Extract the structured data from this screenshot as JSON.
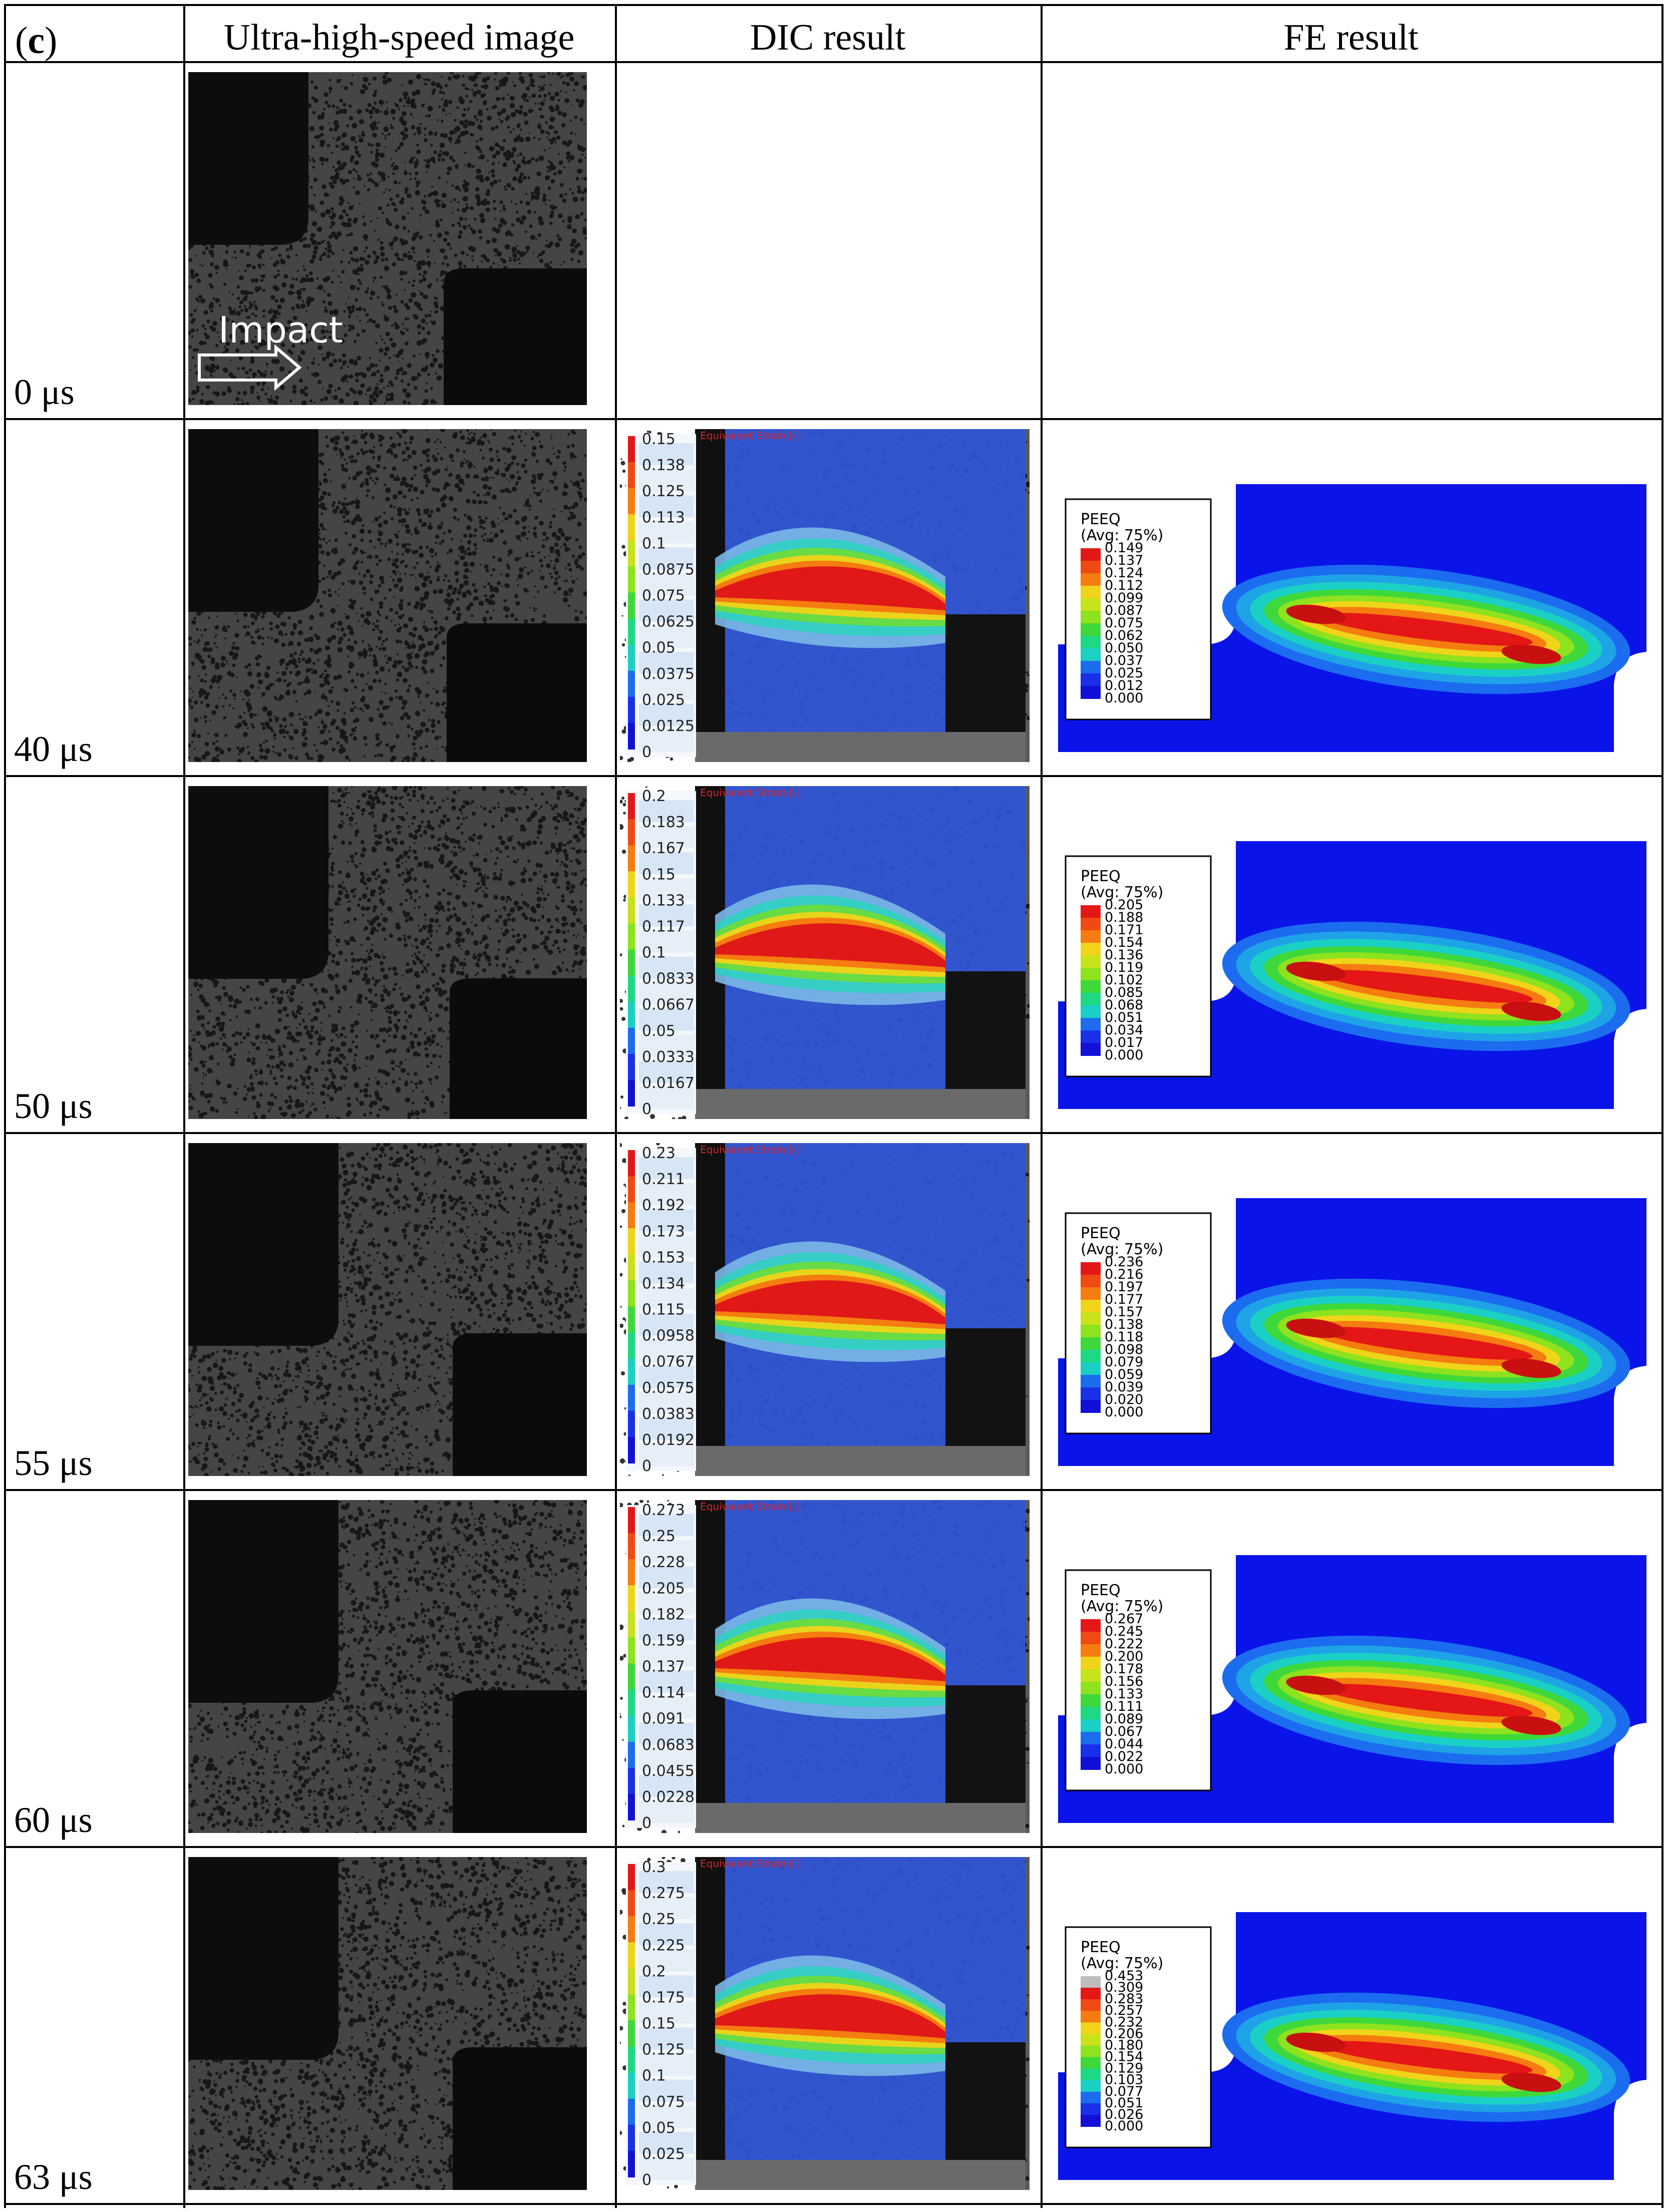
{
  "panel_label": "c",
  "columns": {
    "speed": "Ultra-high-speed image",
    "dic": "DIC result",
    "fe": "FE result"
  },
  "impact_label": "Impact",
  "dic_title": "Equivalent Strain [-]",
  "fe_title": "PEEQ",
  "fe_subtitle": "(Avg: 75%)",
  "colors": {
    "speed_bg": "#3c3c3c",
    "speed_dark": "#0d0d0d",
    "dic_blue": "#2f55d8",
    "fe_blue": "#0a14e8",
    "band_red": "#e01818"
  },
  "rows": [
    {
      "time": "0 μs",
      "dic": null,
      "fe": null
    },
    {
      "time": "40 μs",
      "dic": [
        "0.15",
        "0.138",
        "0.125",
        "0.113",
        "0.1",
        "0.0875",
        "0.075",
        "0.0625",
        "0.05",
        "0.0375",
        "0.025",
        "0.0125",
        "0"
      ],
      "fe": [
        "0.149",
        "0.137",
        "0.124",
        "0.112",
        "0.099",
        "0.087",
        "0.075",
        "0.062",
        "0.050",
        "0.037",
        "0.025",
        "0.012",
        "0.000"
      ]
    },
    {
      "time": "50 μs",
      "dic": [
        "0.2",
        "0.183",
        "0.167",
        "0.15",
        "0.133",
        "0.117",
        "0.1",
        "0.0833",
        "0.0667",
        "0.05",
        "0.0333",
        "0.0167",
        "0"
      ],
      "fe": [
        "0.205",
        "0.188",
        "0.171",
        "0.154",
        "0.136",
        "0.119",
        "0.102",
        "0.085",
        "0.068",
        "0.051",
        "0.034",
        "0.017",
        "0.000"
      ]
    },
    {
      "time": "55 μs",
      "dic": [
        "0.23",
        "0.211",
        "0.192",
        "0.173",
        "0.153",
        "0.134",
        "0.115",
        "0.0958",
        "0.0767",
        "0.0575",
        "0.0383",
        "0.0192",
        "0"
      ],
      "fe": [
        "0.236",
        "0.216",
        "0.197",
        "0.177",
        "0.157",
        "0.138",
        "0.118",
        "0.098",
        "0.079",
        "0.059",
        "0.039",
        "0.020",
        "0.000"
      ]
    },
    {
      "time": "60 μs",
      "dic": [
        "0.273",
        "0.25",
        "0.228",
        "0.205",
        "0.182",
        "0.159",
        "0.137",
        "0.114",
        "0.091",
        "0.0683",
        "0.0455",
        "0.0228",
        "0"
      ],
      "fe": [
        "0.267",
        "0.245",
        "0.222",
        "0.200",
        "0.178",
        "0.156",
        "0.133",
        "0.111",
        "0.089",
        "0.067",
        "0.044",
        "0.022",
        "0.000"
      ]
    },
    {
      "time": "63 μs",
      "dic": [
        "0.3",
        "0.275",
        "0.25",
        "0.225",
        "0.2",
        "0.175",
        "0.15",
        "0.125",
        "0.1",
        "0.075",
        "0.05",
        "0.025",
        "0"
      ],
      "fe": [
        "0.453",
        "0.309",
        "0.283",
        "0.257",
        "0.232",
        "0.206",
        "0.180",
        "0.154",
        "0.129",
        "0.103",
        "0.077",
        "0.051",
        "0.026",
        "0.000"
      ]
    }
  ]
}
